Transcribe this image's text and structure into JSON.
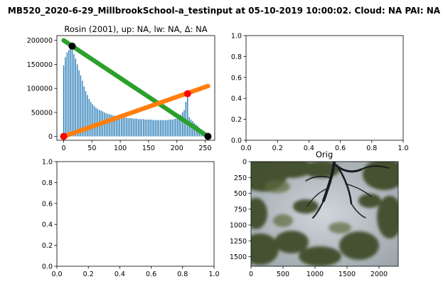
{
  "figure": {
    "suptitle": "MB520_2020-6-29_MillbrookSchool-a_testinput at 05-10-2019 10:00:02. Cloud: NA PAI: NA"
  },
  "panels": {
    "top_left": {
      "title": "Rosin (2001), up: NA, lw: NA, Δ: NA"
    },
    "bottom_right": {
      "title": "Orig"
    }
  },
  "chart_data": [
    {
      "type": "bar",
      "panel": "top-left",
      "title": "Rosin (2001), up: NA, lw: NA, Δ: NA",
      "xlim": [
        -12,
        267
      ],
      "ylim": [
        -8000,
        210000
      ],
      "x_ticks": [
        0,
        50,
        100,
        150,
        200,
        250
      ],
      "y_ticks": [
        0,
        50000,
        100000,
        150000,
        200000
      ],
      "x_tick_labels": [
        "0",
        "50",
        "100",
        "150",
        "200",
        "250"
      ],
      "y_tick_labels": [
        "0",
        "50000",
        "100000",
        "150000",
        "200000"
      ],
      "histogram": {
        "color": "#1f77b4",
        "bin_width": 3,
        "x": [
          0,
          3,
          6,
          9,
          12,
          15,
          18,
          21,
          24,
          27,
          30,
          33,
          36,
          39,
          42,
          45,
          48,
          51,
          54,
          57,
          60,
          63,
          66,
          69,
          72,
          75,
          78,
          81,
          84,
          87,
          90,
          93,
          96,
          99,
          102,
          105,
          108,
          111,
          114,
          117,
          120,
          123,
          126,
          129,
          132,
          135,
          138,
          141,
          144,
          147,
          150,
          153,
          156,
          159,
          162,
          165,
          168,
          171,
          174,
          177,
          180,
          183,
          186,
          189,
          192,
          195,
          198,
          201,
          204,
          207,
          210,
          213,
          216,
          219,
          222,
          225,
          228,
          231,
          234,
          237,
          240,
          243,
          246,
          249,
          252
        ],
        "values": [
          148000,
          165000,
          175000,
          180000,
          183000,
          180000,
          172000,
          162000,
          150000,
          138000,
          127000,
          116000,
          104000,
          94000,
          86000,
          78000,
          72000,
          67000,
          63000,
          60000,
          57000,
          55000,
          54000,
          52000,
          50000,
          48000,
          47000,
          46000,
          45000,
          44000,
          43000,
          42000,
          42000,
          41000,
          40000,
          40000,
          39000,
          39000,
          38000,
          38000,
          38000,
          37000,
          37000,
          37000,
          36000,
          36000,
          36000,
          36000,
          35000,
          35000,
          35000,
          35000,
          35000,
          34000,
          34000,
          34000,
          34000,
          34000,
          34000,
          34000,
          34000,
          34000,
          35000,
          35000,
          35000,
          36000,
          37000,
          38000,
          40000,
          45000,
          50000,
          55000,
          72000,
          85000,
          40000,
          35000,
          32000,
          28000,
          25000,
          22000,
          18000,
          14000,
          10000,
          6000,
          3000
        ]
      },
      "series": [
        {
          "color": "#2ca02c",
          "x": [
            0,
            255
          ],
          "values": [
            200000,
            0
          ]
        },
        {
          "color": "#ff7f0e",
          "x": [
            0,
            255
          ],
          "values": [
            0,
            105000
          ]
        }
      ],
      "markers": [
        {
          "color": "#ff0000",
          "x": 0,
          "y": 0
        },
        {
          "color": "#ff0000",
          "x": 219,
          "y": 89000
        },
        {
          "color": "#000000",
          "x": 15,
          "y": 188000
        },
        {
          "color": "#000000",
          "x": 255,
          "y": 0
        }
      ]
    },
    {
      "type": "scatter",
      "panel": "top-right",
      "xlim": [
        0,
        1
      ],
      "ylim": [
        0,
        1
      ],
      "x_tick_labels": [
        "0.0",
        "0.2",
        "0.4",
        "0.6",
        "0.8",
        "1.0"
      ],
      "y_tick_labels": [
        "0.0",
        "0.2",
        "0.4",
        "0.6",
        "0.8",
        "1.0"
      ],
      "values": []
    },
    {
      "type": "scatter",
      "panel": "bottom-left",
      "xlim": [
        0,
        1
      ],
      "ylim": [
        0,
        1
      ],
      "x_tick_labels": [
        "0.0",
        "0.2",
        "0.4",
        "0.6",
        "0.8",
        "1.0"
      ],
      "y_tick_labels": [
        "0.0",
        "0.2",
        "0.4",
        "0.6",
        "0.8",
        "1.0"
      ],
      "values": []
    },
    {
      "type": "heatmap",
      "panel": "bottom-right",
      "title": "Orig",
      "xlim": [
        0,
        2300
      ],
      "ylim": [
        1650,
        0
      ],
      "x_ticks": [
        0,
        500,
        1000,
        1500,
        2000
      ],
      "y_ticks": [
        0,
        250,
        500,
        750,
        1000,
        1250,
        1500
      ],
      "x_tick_labels": [
        "0",
        "500",
        "1000",
        "1500",
        "2000"
      ],
      "y_tick_labels": [
        "0",
        "250",
        "500",
        "750",
        "1000",
        "1250",
        "1500"
      ]
    }
  ]
}
